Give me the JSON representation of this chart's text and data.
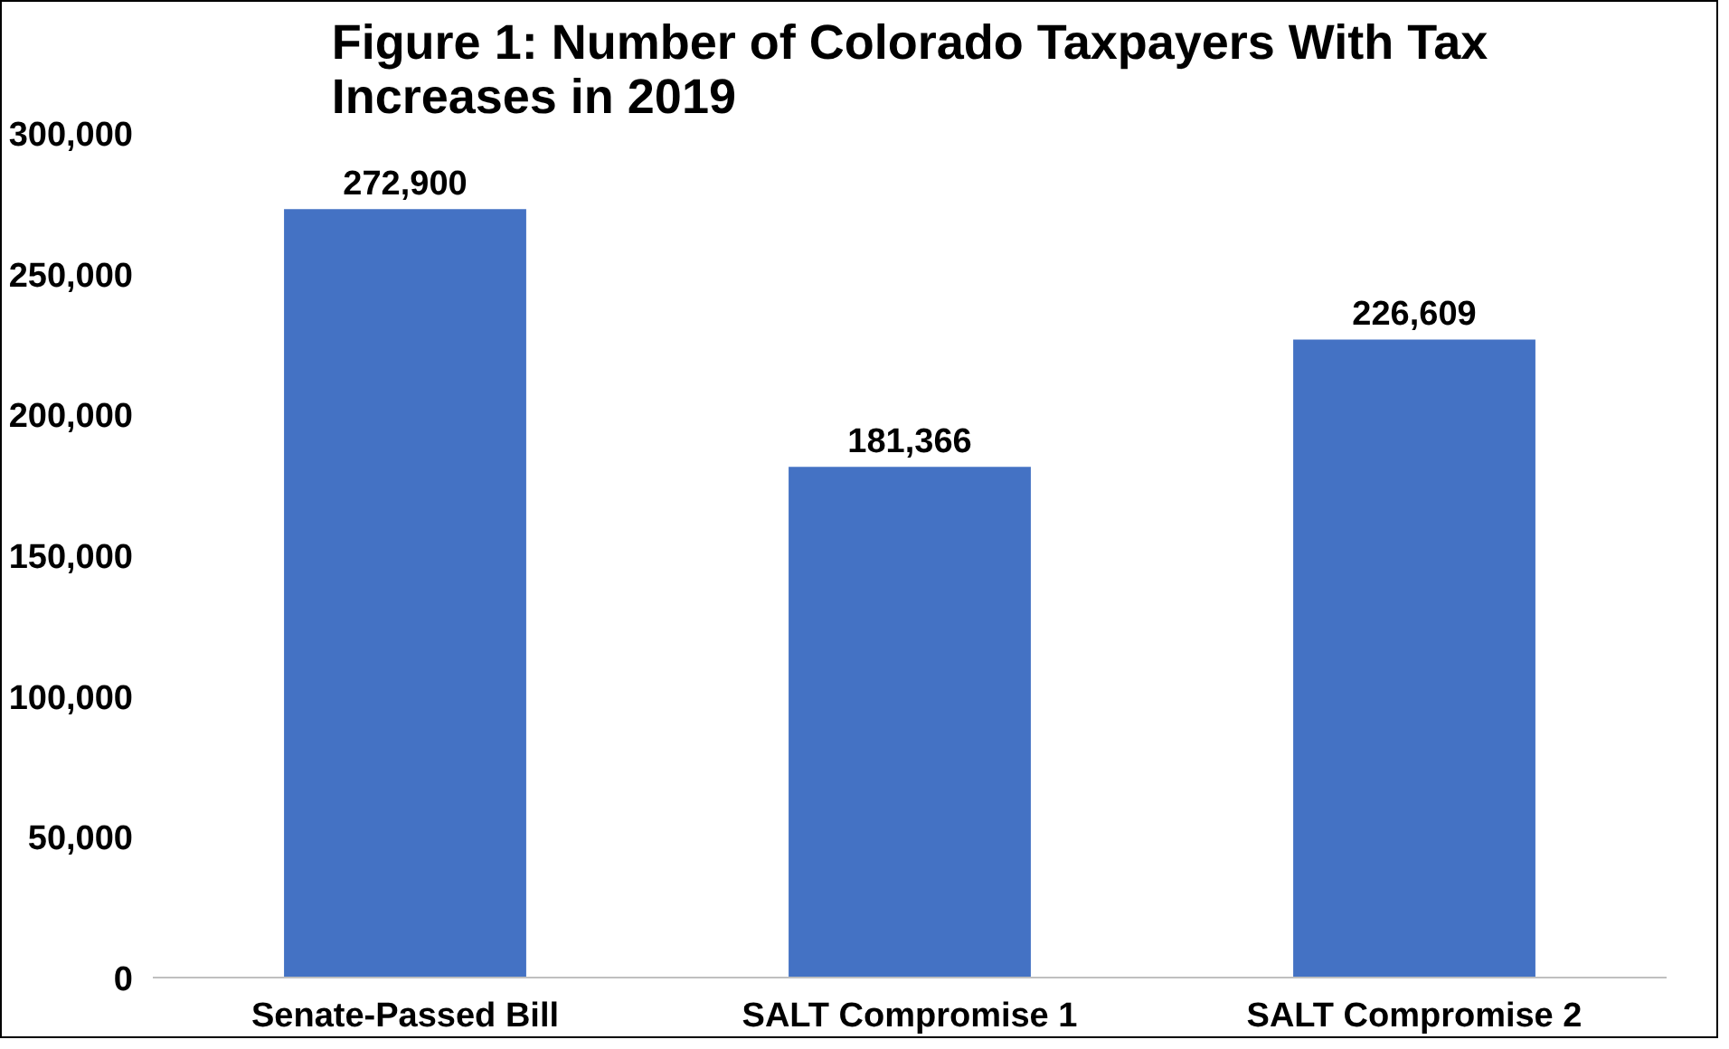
{
  "chart_data": {
    "type": "bar",
    "title": "Figure 1: Number of Colorado Taxpayers With Tax Increases in 2019",
    "categories": [
      "Senate-Passed Bill",
      "SALT Compromise 1",
      "SALT Compromise 2"
    ],
    "values": [
      272900,
      181366,
      226609
    ],
    "value_labels": [
      "272,900",
      "181,366",
      "226,609"
    ],
    "color": "#4472c4",
    "ylim": [
      0,
      300000
    ],
    "yticks": [
      {
        "value": 0,
        "label": "0"
      },
      {
        "value": 50000,
        "label": "50,000"
      },
      {
        "value": 100000,
        "label": "100,000"
      },
      {
        "value": 150000,
        "label": "150,000"
      },
      {
        "value": 200000,
        "label": "200,000"
      },
      {
        "value": 250000,
        "label": "250,000"
      },
      {
        "value": 300000,
        "label": "300,000"
      }
    ],
    "grid": false
  }
}
